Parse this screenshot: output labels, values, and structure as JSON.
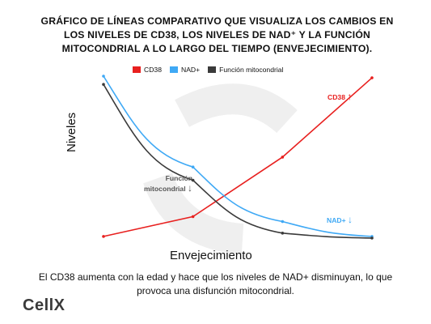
{
  "title": "GRÁFICO DE LÍNEAS COMPARATIVO QUE VISUALIZA LOS CAMBIOS EN LOS NIVELES DE CD38, LOS NIVELES DE NAD⁺ Y LA FUNCIÓN MITOCONDRIAL A LO LARGO DEL TIEMPO (ENVEJECIMIENTO).",
  "caption": "El CD38 aumenta con la edad y hace que los niveles de NAD+ disminuyan, lo que provoca una disfunción mitocondrial.",
  "logo": "CellX",
  "colors": {
    "cd38": "#e8201f",
    "nad": "#3fa9f5",
    "mito": "#3a3a3a",
    "watermark": "#efefef"
  },
  "chart_data": {
    "type": "line",
    "xlabel": "Envejecimiento",
    "ylabel": "Niveles",
    "x": [
      0,
      1,
      2,
      3
    ],
    "series": [
      {
        "name": "CD38",
        "values": [
          3,
          15,
          51,
          99
        ]
      },
      {
        "name": "NAD+",
        "values": [
          100,
          45,
          12,
          3
        ]
      },
      {
        "name": "Función mitocondrial",
        "values": [
          95,
          37,
          5,
          2
        ]
      }
    ],
    "annotations": [
      {
        "text": "CD38",
        "arrow": "↑"
      },
      {
        "text": "NAD+",
        "arrow": "↓"
      },
      {
        "text": "Función mitocondrial",
        "arrow": "↓"
      }
    ],
    "grid": false,
    "legend": "top"
  }
}
